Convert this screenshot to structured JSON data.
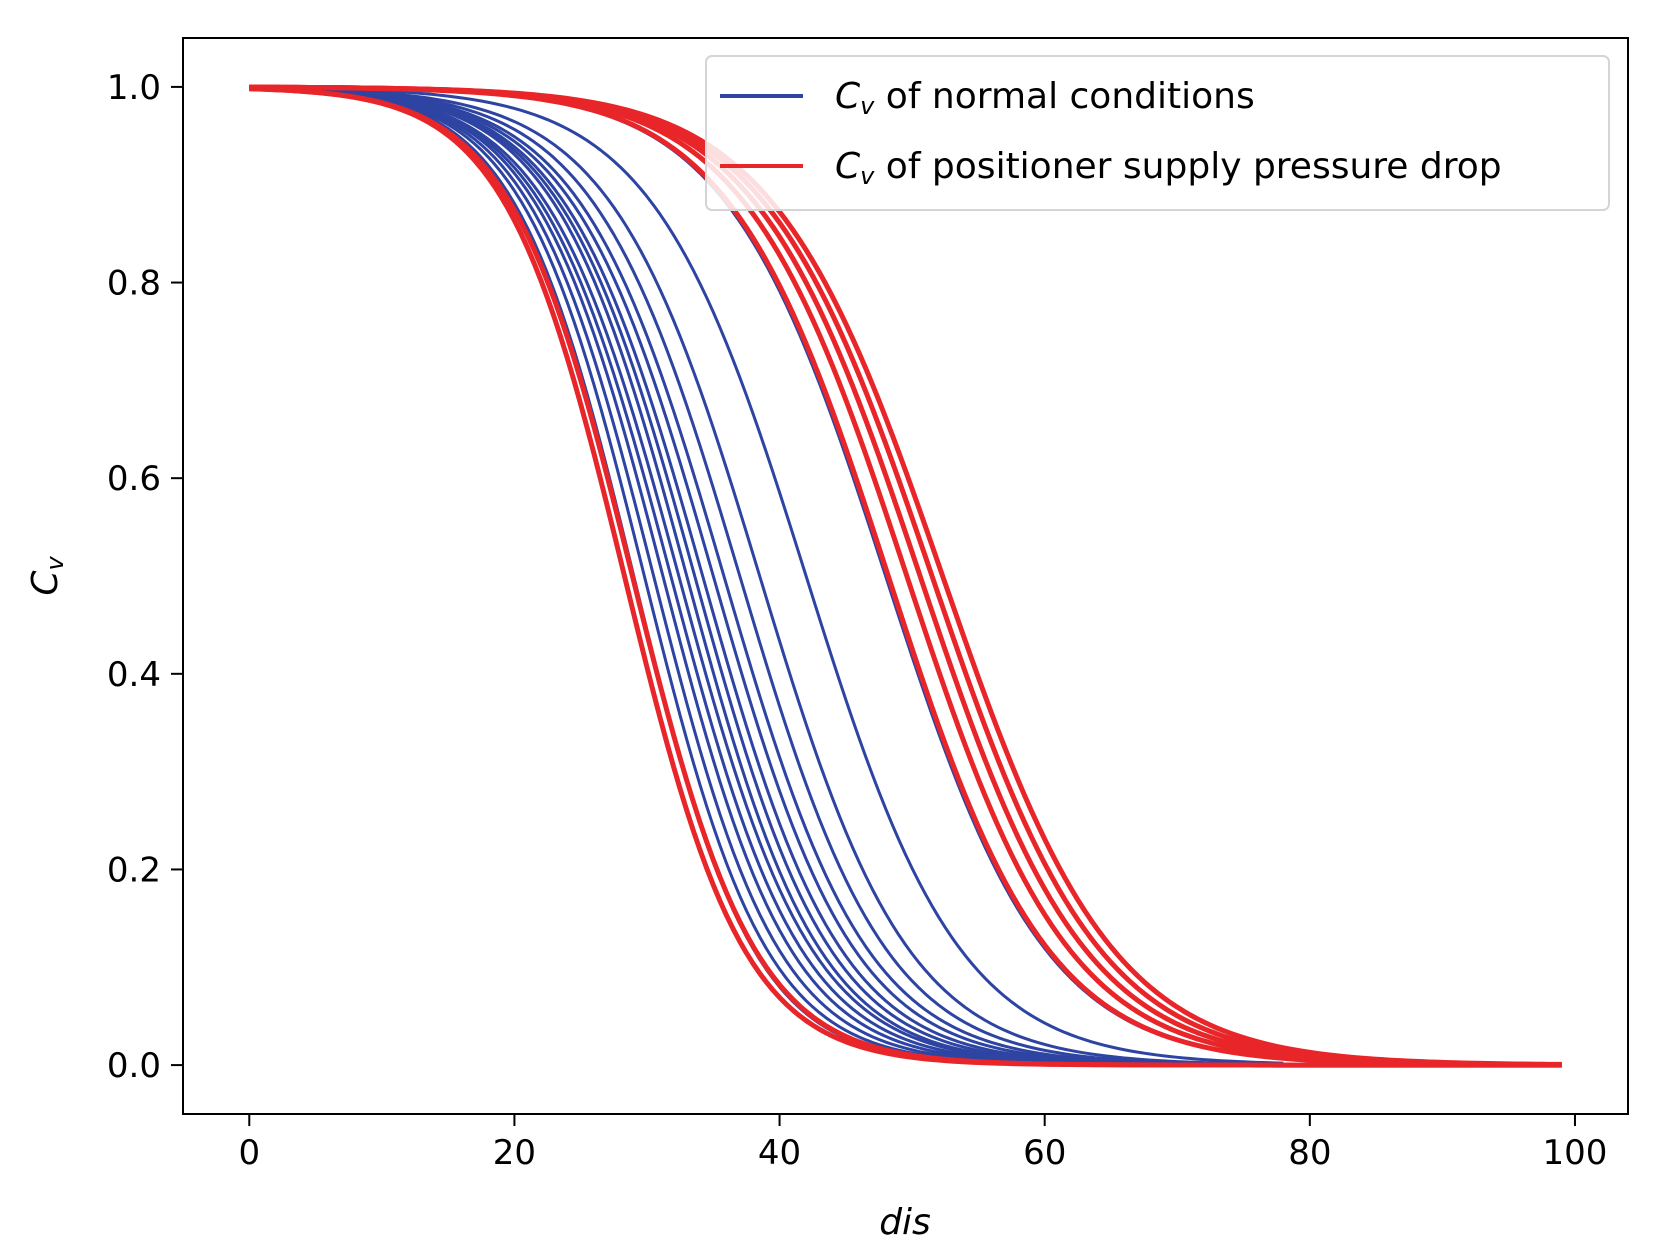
{
  "chart_data": {
    "type": "line",
    "title": "",
    "xlabel": "dis",
    "ylabel": "C_v",
    "ylabel_main": "C",
    "ylabel_sub": "v",
    "xlim": [
      -5,
      104
    ],
    "ylim": [
      -0.05,
      1.05
    ],
    "xticks": [
      0,
      20,
      40,
      60,
      80,
      100
    ],
    "xtick_labels": [
      "0",
      "20",
      "40",
      "60",
      "80",
      "100"
    ],
    "yticks": [
      0.0,
      0.2,
      0.4,
      0.6,
      0.8,
      1.0
    ],
    "ytick_labels": [
      "0.0",
      "0.2",
      "0.4",
      "0.6",
      "0.8",
      "1.0"
    ],
    "grid": false,
    "legend_position": "top-right",
    "curve_model": "Cv = 1 / (1 + exp((dis - midpoint) / scale))",
    "series": [
      {
        "name": "Cv of normal conditions",
        "legend_main": "C",
        "legend_sub": "v",
        "legend_rest": " of normal conditions",
        "color": "#2e44a3",
        "curves": [
          {
            "midpoint": 29.0,
            "scale": 4.5,
            "x_end": 62
          },
          {
            "midpoint": 29.8,
            "scale": 4.6,
            "x_end": 64
          },
          {
            "midpoint": 30.5,
            "scale": 4.7,
            "x_end": 66
          },
          {
            "midpoint": 31.2,
            "scale": 4.8,
            "x_end": 67
          },
          {
            "midpoint": 31.8,
            "scale": 4.9,
            "x_end": 68
          },
          {
            "midpoint": 32.4,
            "scale": 5.0,
            "x_end": 69
          },
          {
            "midpoint": 33.0,
            "scale": 5.0,
            "x_end": 70
          },
          {
            "midpoint": 33.6,
            "scale": 5.1,
            "x_end": 71
          },
          {
            "midpoint": 34.2,
            "scale": 5.2,
            "x_end": 72
          },
          {
            "midpoint": 35.0,
            "scale": 5.3,
            "x_end": 73
          },
          {
            "midpoint": 35.8,
            "scale": 5.4,
            "x_end": 74
          },
          {
            "midpoint": 37.0,
            "scale": 5.5,
            "x_end": 75
          },
          {
            "midpoint": 38.5,
            "scale": 5.6,
            "x_end": 76
          },
          {
            "midpoint": 42.0,
            "scale": 5.8,
            "x_end": 78
          },
          {
            "midpoint": 48.0,
            "scale": 6.0,
            "x_end": 79
          }
        ]
      },
      {
        "name": "Cv of positioner supply pressure drop",
        "legend_main": "C",
        "legend_sub": "v",
        "legend_rest": " of positioner supply pressure drop",
        "color": "#e8262a",
        "curves": [
          {
            "midpoint": 28.3,
            "scale": 4.5,
            "x_end": 99
          },
          {
            "midpoint": 28.9,
            "scale": 4.6,
            "x_end": 99
          },
          {
            "midpoint": 48.2,
            "scale": 6.0,
            "x_end": 99
          },
          {
            "midpoint": 49.6,
            "scale": 6.1,
            "x_end": 99
          },
          {
            "midpoint": 50.6,
            "scale": 6.2,
            "x_end": 99
          },
          {
            "midpoint": 51.5,
            "scale": 6.3,
            "x_end": 99
          },
          {
            "midpoint": 52.3,
            "scale": 6.4,
            "x_end": 99
          }
        ]
      }
    ]
  }
}
